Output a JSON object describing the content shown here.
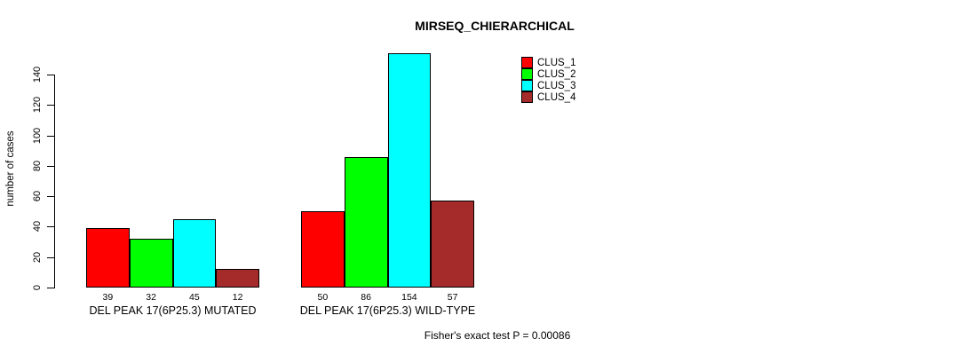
{
  "chart_data": {
    "type": "bar",
    "title": "MIRSEQ_CHIERARCHICAL",
    "ylabel": "number of cases",
    "xlabel": "",
    "ylim": [
      0,
      154
    ],
    "yticks": [
      0,
      20,
      40,
      60,
      80,
      100,
      120,
      140
    ],
    "grid": false,
    "legend_position": "top-right",
    "categories": [
      "DEL PEAK 17(6P25.3) MUTATED",
      "DEL PEAK 17(6P25.3) WILD-TYPE"
    ],
    "series": [
      {
        "name": "CLUS_1",
        "color": "#ff0000",
        "values": [
          39,
          50
        ]
      },
      {
        "name": "CLUS_2",
        "color": "#00ff00",
        "values": [
          32,
          86
        ]
      },
      {
        "name": "CLUS_3",
        "color": "#00ffff",
        "values": [
          45,
          154
        ]
      },
      {
        "name": "CLUS_4",
        "color": "#a52a2a",
        "values": [
          12,
          57
        ]
      }
    ],
    "bar_value_labels": [
      [
        39,
        32,
        45,
        12
      ],
      [
        50,
        86,
        154,
        57
      ]
    ],
    "annotation": "Fisher's exact test P = 0.00086",
    "axis_color": "#000000",
    "bar_border_color": "#000000",
    "background_color": "#ffffff"
  }
}
